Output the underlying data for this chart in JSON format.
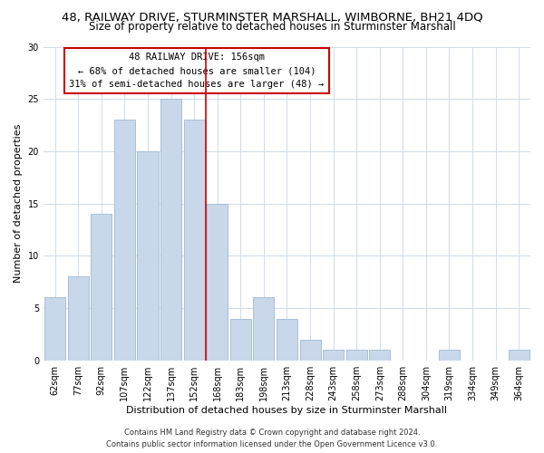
{
  "title1": "48, RAILWAY DRIVE, STURMINSTER MARSHALL, WIMBORNE, BH21 4DQ",
  "title2": "Size of property relative to detached houses in Sturminster Marshall",
  "xlabel": "Distribution of detached houses by size in Sturminster Marshall",
  "ylabel": "Number of detached properties",
  "categories": [
    "62sqm",
    "77sqm",
    "92sqm",
    "107sqm",
    "122sqm",
    "137sqm",
    "152sqm",
    "168sqm",
    "183sqm",
    "198sqm",
    "213sqm",
    "228sqm",
    "243sqm",
    "258sqm",
    "273sqm",
    "288sqm",
    "304sqm",
    "319sqm",
    "334sqm",
    "349sqm",
    "364sqm"
  ],
  "values": [
    6,
    8,
    14,
    23,
    20,
    25,
    23,
    15,
    4,
    6,
    4,
    2,
    1,
    1,
    1,
    0,
    0,
    1,
    0,
    0,
    1
  ],
  "bar_color": "#c8d8ea",
  "bar_edge_color": "#a0b8d0",
  "vline_color": "#cc0000",
  "vline_pos": 6.5,
  "annotation_lines": [
    "48 RAILWAY DRIVE: 156sqm",
    "← 68% of detached houses are smaller (104)",
    "31% of semi-detached houses are larger (48) →"
  ],
  "annotation_box_color": "#cc0000",
  "grid_color": "#d0dce8",
  "ylim": [
    0,
    30
  ],
  "yticks": [
    0,
    5,
    10,
    15,
    20,
    25,
    30
  ],
  "footer1": "Contains HM Land Registry data © Crown copyright and database right 2024.",
  "footer2": "Contains public sector information licensed under the Open Government Licence v3.0.",
  "background_color": "#ffffff",
  "title1_fontsize": 9.5,
  "title2_fontsize": 8.5,
  "xlabel_fontsize": 8,
  "ylabel_fontsize": 8,
  "tick_fontsize": 7,
  "annotation_fontsize": 7.5,
  "footer_fontsize": 6
}
